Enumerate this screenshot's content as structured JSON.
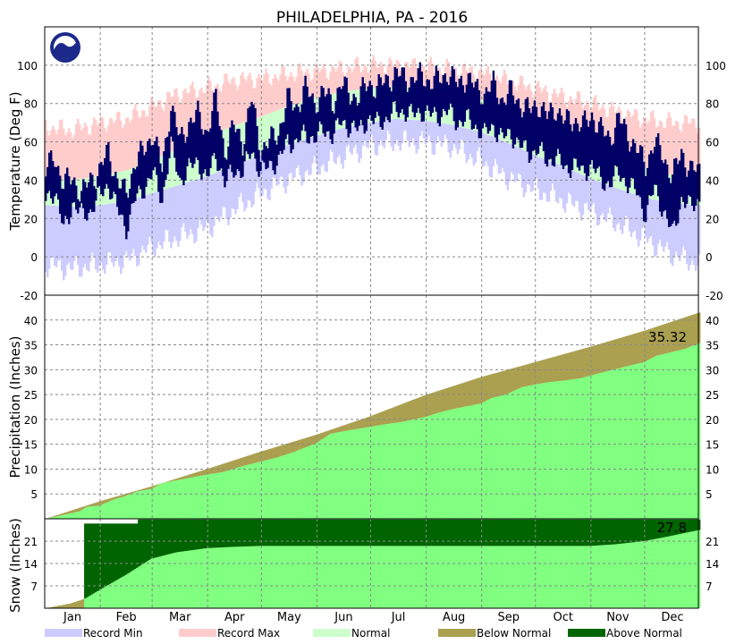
{
  "chart_data": {
    "type": "area",
    "title": "PHILADELPHIA, PA - 2016",
    "months": [
      "Jan",
      "Feb",
      "Mar",
      "Apr",
      "May",
      "Jun",
      "Jul",
      "Aug",
      "Sep",
      "Oct",
      "Nov",
      "Dec"
    ],
    "grid": true,
    "legend_position": "bottom",
    "colors": {
      "record_min": "#ccccff",
      "record_max": "#ffcccc",
      "normal": "#ccffcc",
      "observed_temp": "#000066",
      "observed_precip": "#80ff80",
      "below_normal": "#aaa050",
      "above_normal": "#006400"
    },
    "legend": [
      {
        "key": "record_min",
        "label": "Record Min",
        "color": "#ccccff"
      },
      {
        "key": "record_max",
        "label": "Record Max",
        "color": "#ffcccc"
      },
      {
        "key": "normal",
        "label": "Normal",
        "color": "#ccffcc"
      },
      {
        "key": "below_normal",
        "label": "Below Normal",
        "color": "#aaa050"
      },
      {
        "key": "above_normal",
        "label": "Above Normal",
        "color": "#006400"
      }
    ],
    "panels": [
      {
        "name": "temperature",
        "ylabel": "Temperature (Deg F)",
        "ylim": [
          -20,
          120
        ],
        "yticks": [
          -20,
          0,
          20,
          40,
          60,
          80,
          100
        ],
        "series": [
          {
            "name": "Record Max",
            "x_day": [
              1,
              15,
              32,
              46,
              60,
              74,
              91,
              105,
              121,
              135,
              152,
              166,
              182,
              196,
              213,
              227,
              244,
              258,
              274,
              288,
              305,
              319,
              335,
              349,
              366
            ],
            "values": [
              68,
              66,
              70,
              72,
              78,
              85,
              88,
              92,
              93,
              95,
              97,
              98,
              100,
              100,
              99,
              98,
              96,
              92,
              88,
              84,
              80,
              76,
              72,
              70,
              70
            ]
          },
          {
            "name": "Record Min",
            "x_day": [
              1,
              15,
              32,
              46,
              60,
              74,
              91,
              105,
              121,
              135,
              152,
              166,
              182,
              196,
              213,
              227,
              244,
              258,
              274,
              288,
              305,
              319,
              335,
              349,
              366
            ],
            "values": [
              -4,
              -6,
              -4,
              -2,
              5,
              10,
              15,
              24,
              33,
              40,
              46,
              52,
              58,
              60,
              60,
              58,
              50,
              42,
              35,
              30,
              24,
              18,
              10,
              2,
              -4
            ]
          },
          {
            "name": "Normal High",
            "x_day": [
              1,
              15,
              32,
              46,
              60,
              74,
              91,
              105,
              121,
              135,
              152,
              166,
              182,
              196,
              213,
              227,
              244,
              258,
              274,
              288,
              305,
              319,
              335,
              349,
              366
            ],
            "values": [
              41,
              40,
              42,
              45,
              50,
              56,
              63,
              68,
              73,
              78,
              83,
              86,
              88,
              89,
              88,
              86,
              82,
              77,
              70,
              65,
              58,
              53,
              47,
              43,
              41
            ]
          },
          {
            "name": "Normal Low",
            "x_day": [
              1,
              15,
              32,
              46,
              60,
              74,
              91,
              105,
              121,
              135,
              152,
              166,
              182,
              196,
              213,
              227,
              244,
              258,
              274,
              288,
              305,
              319,
              335,
              349,
              366
            ],
            "values": [
              27,
              26,
              27,
              29,
              33,
              37,
              42,
              47,
              53,
              58,
              63,
              67,
              70,
              72,
              71,
              69,
              65,
              60,
              53,
              48,
              41,
              36,
              31,
              28,
              27
            ]
          },
          {
            "name": "Observed High",
            "x_day": [
              1,
              6,
              11,
              16,
              21,
              26,
              31,
              36,
              41,
              46,
              51,
              56,
              61,
              66,
              71,
              76,
              81,
              86,
              91,
              96,
              101,
              106,
              111,
              116,
              121,
              126,
              131,
              136,
              141,
              146,
              151,
              156,
              161,
              166,
              171,
              176,
              181,
              186,
              191,
              196,
              201,
              206,
              211,
              216,
              221,
              226,
              231,
              236,
              241,
              246,
              251,
              256,
              261,
              266,
              271,
              276,
              281,
              286,
              291,
              296,
              301,
              306,
              311,
              316,
              321,
              326,
              331,
              336,
              341,
              346,
              351,
              356,
              361,
              366
            ],
            "values": [
              45,
              52,
              38,
              41,
              33,
              40,
              45,
              55,
              40,
              32,
              50,
              55,
              65,
              45,
              80,
              60,
              70,
              74,
              65,
              82,
              55,
              68,
              60,
              82,
              56,
              60,
              65,
              82,
              78,
              88,
              80,
              86,
              80,
              90,
              85,
              83,
              91,
              88,
              92,
              95,
              94,
              92,
              95,
              91,
              93,
              96,
              90,
              94,
              88,
              85,
              90,
              82,
              86,
              80,
              76,
              80,
              73,
              78,
              70,
              72,
              68,
              74,
              66,
              62,
              72,
              64,
              56,
              48,
              60,
              52,
              42,
              54,
              46,
              44
            ]
          },
          {
            "name": "Observed Low",
            "x_day": [
              1,
              6,
              11,
              16,
              21,
              26,
              31,
              36,
              41,
              46,
              51,
              56,
              61,
              66,
              71,
              76,
              81,
              86,
              91,
              96,
              101,
              106,
              111,
              116,
              121,
              126,
              131,
              136,
              141,
              146,
              151,
              156,
              161,
              166,
              171,
              176,
              181,
              186,
              191,
              196,
              201,
              206,
              211,
              216,
              221,
              226,
              231,
              236,
              241,
              246,
              251,
              256,
              261,
              266,
              271,
              276,
              281,
              286,
              291,
              296,
              301,
              306,
              311,
              316,
              321,
              326,
              331,
              336,
              341,
              346,
              351,
              356,
              361,
              366
            ],
            "values": [
              30,
              35,
              14,
              28,
              22,
              24,
              32,
              38,
              25,
              15,
              30,
              36,
              44,
              30,
              58,
              40,
              46,
              50,
              40,
              54,
              38,
              46,
              44,
              56,
              44,
              48,
              50,
              60,
              60,
              64,
              62,
              66,
              64,
              70,
              68,
              66,
              72,
              70,
              72,
              76,
              76,
              74,
              76,
              74,
              74,
              76,
              70,
              72,
              68,
              64,
              68,
              62,
              64,
              58,
              54,
              56,
              50,
              52,
              46,
              48,
              44,
              48,
              40,
              38,
              44,
              38,
              34,
              22,
              36,
              24,
              12,
              30,
              26,
              30
            ]
          }
        ]
      },
      {
        "name": "precipitation",
        "ylabel": "Precipitation (Inches)",
        "ylim": [
          0,
          45
        ],
        "yticks": [
          5,
          10,
          15,
          20,
          25,
          30,
          35,
          40
        ],
        "observed_total": "35.32",
        "series": [
          {
            "name": "Normal",
            "x_day": [
              1,
              32,
              60,
              91,
              121,
              152,
              182,
              213,
              244,
              274,
              305,
              335,
              366
            ],
            "values": [
              0,
              3.6,
              6.5,
              10.0,
              13.5,
              16.9,
              20.6,
              24.9,
              28.5,
              31.5,
              34.6,
              37.8,
              41.5
            ]
          },
          {
            "name": "Observed",
            "x_day": [
              1,
              10,
              20,
              24,
              30,
              32,
              40,
              45,
              52,
              60,
              66,
              75,
              85,
              91,
              100,
              110,
              121,
              130,
              140,
              152,
              160,
              170,
              182,
              190,
              200,
              213,
              222,
              230,
              244,
              250,
              258,
              267,
              274,
              282,
              290,
              300,
              305,
              320,
              335,
              342,
              350,
              358,
              366
            ],
            "values": [
              0,
              0.7,
              1.5,
              2.4,
              2.6,
              2.8,
              4.0,
              4.5,
              5.5,
              6.0,
              7.2,
              7.8,
              8.5,
              8.9,
              9.4,
              10.5,
              11.5,
              12.3,
              13.5,
              15.2,
              17.1,
              17.8,
              18.5,
              19.0,
              19.5,
              20.5,
              21.5,
              22.2,
              23.2,
              24.3,
              25.0,
              26.5,
              27.0,
              27.5,
              27.8,
              28.3,
              28.8,
              30.2,
              31.5,
              32.8,
              33.5,
              34.2,
              35.32
            ]
          }
        ]
      },
      {
        "name": "snow",
        "ylabel": "Snow (Inches)",
        "ylim": [
          0,
          28
        ],
        "yticks": [
          7,
          14,
          21
        ],
        "observed_total": "27.8",
        "series": [
          {
            "name": "Normal",
            "x_day": [
              1,
              15,
              23,
              32,
              46,
              60,
              74,
              91,
              105,
              121,
              305,
              319,
              335,
              349,
              366
            ],
            "values": [
              0,
              1.5,
              3.0,
              6.0,
              10.5,
              15.5,
              17.5,
              18.8,
              19.2,
              19.5,
              19.5,
              20.0,
              21.0,
              22.5,
              24.5
            ]
          },
          {
            "name": "Observed",
            "x_day": [
              1,
              22,
              23,
              52,
              53,
              366
            ],
            "values": [
              0,
              0,
              26.5,
              26.5,
              27.8,
              27.8
            ]
          }
        ]
      }
    ]
  }
}
